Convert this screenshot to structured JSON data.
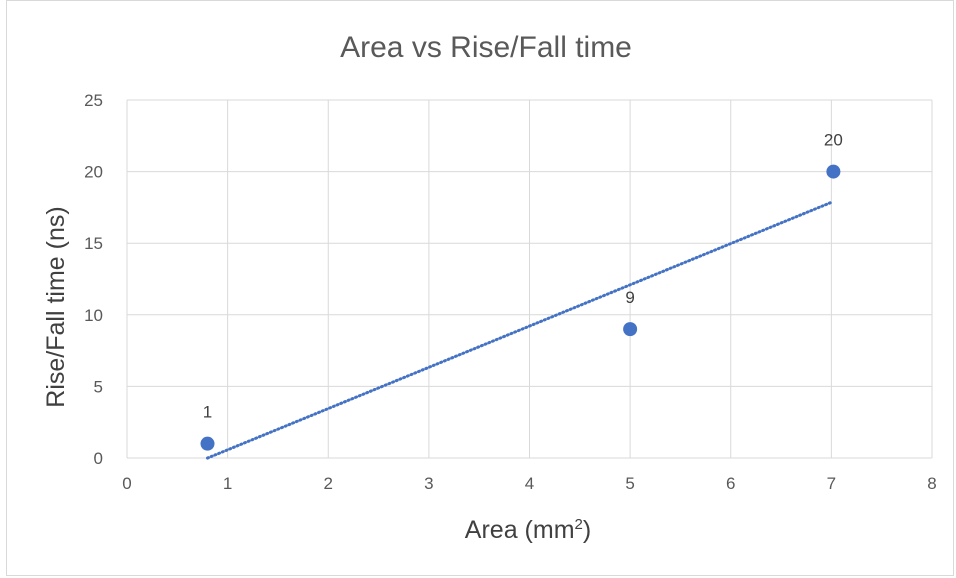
{
  "chart_data": {
    "type": "scatter",
    "title": "Area vs Rise/Fall time",
    "xlabel": "Area (mm",
    "xlabel_sup": "2",
    "xlabel_suffix": ")",
    "ylabel": "Rise/Fall time (ns)",
    "xlim": [
      0,
      8
    ],
    "ylim": [
      0,
      25
    ],
    "xticks": [
      0,
      1,
      2,
      3,
      4,
      5,
      6,
      7,
      8
    ],
    "yticks": [
      0,
      5,
      10,
      15,
      20,
      25
    ],
    "grid": true,
    "series": [
      {
        "points": [
          {
            "x": 0.8,
            "y": 1,
            "label": "1"
          },
          {
            "x": 5,
            "y": 9,
            "label": "9"
          },
          {
            "x": 7.02,
            "y": 20,
            "label": "20"
          }
        ],
        "color": "#4472c4"
      }
    ],
    "trendline": {
      "type": "linear",
      "style": "dotted",
      "color": "#4472c4",
      "x_start": 0.8,
      "x_end": 7.0
    }
  }
}
